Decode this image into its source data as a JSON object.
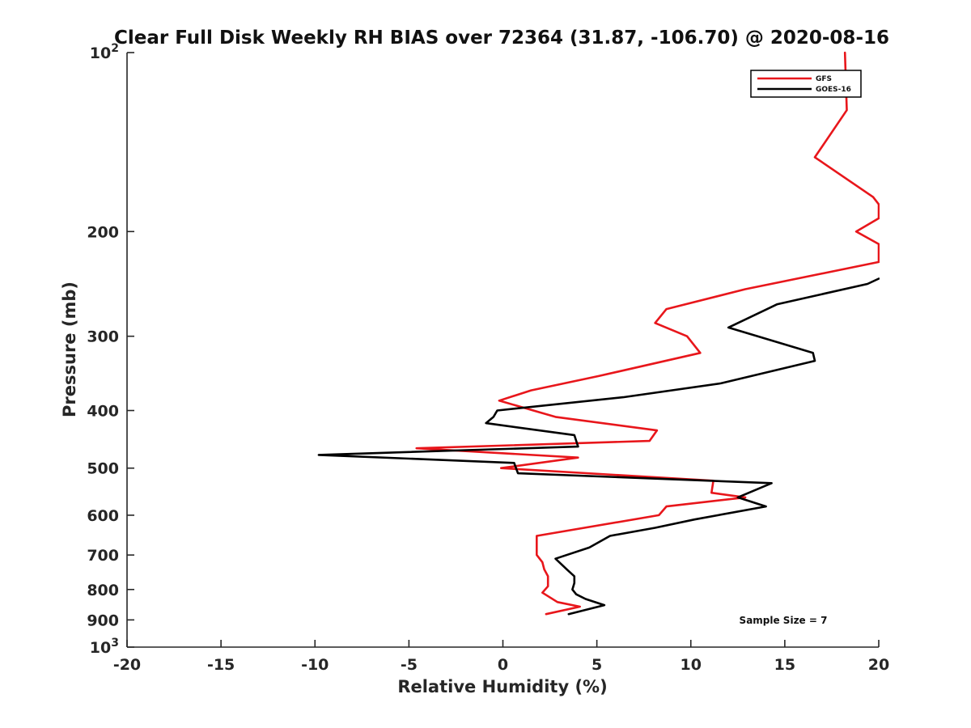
{
  "chart_data": {
    "type": "line",
    "title": "Clear Full Disk Weekly RH BIAS over 72364 (31.87, -106.70) @ 2020-08-16",
    "xlabel": "Relative Humidity (%)",
    "ylabel": "Pressure (mb)",
    "xlim": [
      -20,
      20
    ],
    "ylim": [
      100,
      1000
    ],
    "yscale": "log",
    "y_reversed": true,
    "grid": false,
    "legend_position": "top-right",
    "x_ticks": [
      "-20",
      "-15",
      "-10",
      "-5",
      "0",
      "5",
      "10",
      "15",
      "20"
    ],
    "y_ticks": [
      {
        "base": "10",
        "exp": "2"
      },
      {
        "label": "200"
      },
      {
        "label": "300"
      },
      {
        "label": "400"
      },
      {
        "label": "500"
      },
      {
        "label": "600"
      },
      {
        "label": "700"
      },
      {
        "label": "800"
      },
      {
        "label": "900"
      },
      {
        "base": "10",
        "exp": "3"
      }
    ],
    "annotation": "Sample Size = 7",
    "series": [
      {
        "name": "GFS",
        "color": "#e8161b",
        "points": [
          [
            18.2,
            100
          ],
          [
            18.3,
            125
          ],
          [
            16.6,
            150
          ],
          [
            19.7,
            175
          ],
          [
            20.0,
            180
          ],
          [
            20.0,
            190
          ],
          [
            18.8,
            200
          ],
          [
            20.0,
            210
          ],
          [
            20.0,
            225
          ],
          [
            12.9,
            250
          ],
          [
            8.7,
            270
          ],
          [
            8.1,
            285
          ],
          [
            9.8,
            300
          ],
          [
            10.5,
            320
          ],
          [
            5.1,
            350
          ],
          [
            1.5,
            370
          ],
          [
            -0.2,
            385
          ],
          [
            2.8,
            410
          ],
          [
            8.2,
            432
          ],
          [
            7.8,
            450
          ],
          [
            -4.6,
            463
          ],
          [
            4.0,
            480
          ],
          [
            -0.1,
            500
          ],
          [
            11.2,
            525
          ],
          [
            11.1,
            550
          ],
          [
            12.9,
            560
          ],
          [
            8.7,
            580
          ],
          [
            8.3,
            600
          ],
          [
            1.8,
            650
          ],
          [
            1.8,
            700
          ],
          [
            2.1,
            720
          ],
          [
            2.2,
            740
          ],
          [
            2.4,
            760
          ],
          [
            2.4,
            790
          ],
          [
            2.1,
            810
          ],
          [
            2.9,
            840
          ],
          [
            4.1,
            855
          ],
          [
            2.3,
            880
          ]
        ]
      },
      {
        "name": "GOES-16",
        "color": "#000000",
        "points": [
          [
            20.0,
            240
          ],
          [
            19.4,
            245
          ],
          [
            14.6,
            265
          ],
          [
            12.0,
            290
          ],
          [
            16.5,
            320
          ],
          [
            16.6,
            330
          ],
          [
            11.6,
            360
          ],
          [
            6.4,
            380
          ],
          [
            -0.3,
            400
          ],
          [
            -0.5,
            410
          ],
          [
            -0.9,
            420
          ],
          [
            3.8,
            440
          ],
          [
            4.0,
            460
          ],
          [
            -9.8,
            475
          ],
          [
            0.6,
            490
          ],
          [
            0.8,
            510
          ],
          [
            14.3,
            530
          ],
          [
            12.5,
            560
          ],
          [
            14.0,
            580
          ],
          [
            10.2,
            610
          ],
          [
            8.1,
            630
          ],
          [
            5.7,
            650
          ],
          [
            4.6,
            680
          ],
          [
            2.8,
            710
          ],
          [
            3.4,
            740
          ],
          [
            3.8,
            760
          ],
          [
            3.8,
            780
          ],
          [
            3.7,
            800
          ],
          [
            3.9,
            815
          ],
          [
            4.4,
            830
          ],
          [
            5.4,
            850
          ],
          [
            3.5,
            880
          ]
        ]
      }
    ]
  }
}
